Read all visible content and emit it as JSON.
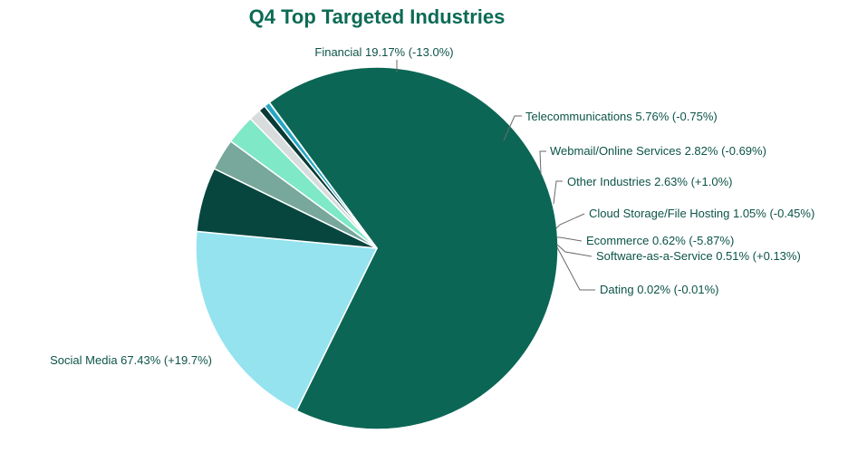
{
  "chart_data": {
    "type": "pie",
    "title": "Q4 Top Targeted Industries",
    "slices": [
      {
        "name": "Social Media",
        "value": 67.43,
        "change": "+19.7%",
        "label": "Social Media 67.43% (+19.7%)",
        "color": "#0c6655"
      },
      {
        "name": "Financial",
        "value": 19.17,
        "change": "-13.0%",
        "label": "Financial 19.17% (-13.0%)",
        "color": "#94e3ef"
      },
      {
        "name": "Telecommunications",
        "value": 5.76,
        "change": "-0.75%",
        "label": "Telecommunications 5.76% (-0.75%)",
        "color": "#07463f"
      },
      {
        "name": "Webmail/Online Services",
        "value": 2.82,
        "change": "-0.69%",
        "label": "Webmail/Online Services 2.82% (-0.69%)",
        "color": "#78a79b"
      },
      {
        "name": "Other Industries",
        "value": 2.63,
        "change": "+1.0%",
        "label": "Other Industries  2.63% (+1.0%)",
        "color": "#7fe8c6"
      },
      {
        "name": "Cloud Storage/File Hosting",
        "value": 1.05,
        "change": "-0.45%",
        "label": "Cloud Storage/File Hosting 1.05% (-0.45%)",
        "color": "#d9dcdc"
      },
      {
        "name": "Ecommerce",
        "value": 0.62,
        "change": "-5.87%",
        "label": "Ecommerce 0.62% (-5.87%)",
        "color": "#0a3b36"
      },
      {
        "name": "Software-as-a-Service",
        "value": 0.51,
        "change": "+0.13%",
        "label": "Software-as-a-Service 0.51% (+0.13%)",
        "color": "#25a6c4"
      },
      {
        "name": "Dating",
        "value": 0.02,
        "change": "-0.01%",
        "label": "Dating 0.02% (-0.01%)",
        "color": "#0c6655"
      }
    ]
  }
}
